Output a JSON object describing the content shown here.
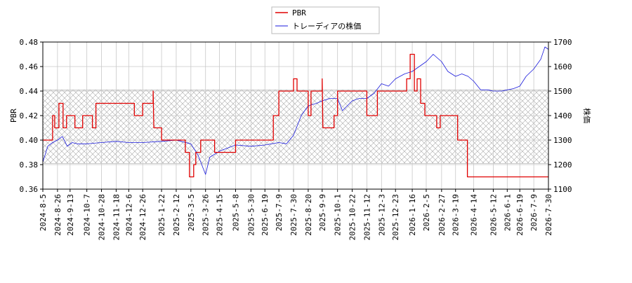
{
  "chart_data": {
    "type": "line",
    "legend": {
      "placement": "top-center",
      "entries": [
        {
          "name": "PBR",
          "color": "#e00000"
        },
        {
          "name": "トレーディアの株価",
          "color": "#1a1adc"
        }
      ]
    },
    "left_axis": {
      "label": "PBR",
      "ylim": [
        0.36,
        0.48
      ],
      "ticks": [
        "0.36",
        "0.38",
        "0.40",
        "0.42",
        "0.44",
        "0.46",
        "0.48"
      ]
    },
    "right_axis": {
      "label": "株価",
      "ylim": [
        1100,
        1700
      ],
      "ticks": [
        "1100",
        "1200",
        "1300",
        "1400",
        "1500",
        "1600",
        "1700"
      ]
    },
    "x_axis": {
      "range": [
        "2024-8-5",
        "2026-7-30"
      ],
      "ticks": [
        "2024-8-5",
        "2024-8-26",
        "2024-9-13",
        "2024-10-7",
        "2024-10-28",
        "2024-11-18",
        "2024-12-6",
        "2024-12-26",
        "2025-1-22",
        "2025-2-12",
        "2025-3-5",
        "2025-3-26",
        "2025-4-15",
        "2025-5-8",
        "2025-5-30",
        "2025-6-19",
        "2025-7-9",
        "2025-7-30",
        "2025-8-20",
        "2025-9-9",
        "2025-10-1",
        "2025-10-22",
        "2025-11-12",
        "2025-12-3",
        "2025-12-23",
        "2026-1-16",
        "2026-2-5",
        "2026-2-27",
        "2026-3-19",
        "2026-4-14",
        "2026-5-12",
        "2026-6-1",
        "2026-6-19",
        "2026-7-9",
        "2026-7-30"
      ]
    },
    "grid": true,
    "hatched_band": {
      "pbr_range": [
        0.381,
        0.441
      ]
    },
    "series": [
      {
        "name": "PBR",
        "axis": "left",
        "color": "#e00000",
        "points": [
          [
            "2024-8-5",
            0.4
          ],
          [
            "2024-8-19",
            0.4
          ],
          [
            "2024-8-19",
            0.42
          ],
          [
            "2024-8-22",
            0.42
          ],
          [
            "2024-8-22",
            0.41
          ],
          [
            "2024-8-28",
            0.41
          ],
          [
            "2024-8-28",
            0.43
          ],
          [
            "2024-9-3",
            0.43
          ],
          [
            "2024-9-3",
            0.41
          ],
          [
            "2024-9-8",
            0.41
          ],
          [
            "2024-9-8",
            0.42
          ],
          [
            "2024-9-20",
            0.42
          ],
          [
            "2024-9-20",
            0.41
          ],
          [
            "2024-10-1",
            0.41
          ],
          [
            "2024-10-1",
            0.42
          ],
          [
            "2024-10-15",
            0.42
          ],
          [
            "2024-10-15",
            0.41
          ],
          [
            "2024-10-20",
            0.41
          ],
          [
            "2024-10-20",
            0.43
          ],
          [
            "2024-12-14",
            0.43
          ],
          [
            "2024-12-14",
            0.42
          ],
          [
            "2024-12-26",
            0.42
          ],
          [
            "2024-12-26",
            0.43
          ],
          [
            "2025-1-10",
            0.43
          ],
          [
            "2025-1-10",
            0.44
          ],
          [
            "2025-1-11",
            0.41
          ],
          [
            "2025-1-22",
            0.41
          ],
          [
            "2025-1-22",
            0.4
          ],
          [
            "2025-2-25",
            0.4
          ],
          [
            "2025-2-25",
            0.39
          ],
          [
            "2025-3-3",
            0.39
          ],
          [
            "2025-3-3",
            0.37
          ],
          [
            "2025-3-9",
            0.37
          ],
          [
            "2025-3-9",
            0.38
          ],
          [
            "2025-3-12",
            0.38
          ],
          [
            "2025-3-12",
            0.39
          ],
          [
            "2025-3-19",
            0.39
          ],
          [
            "2025-3-19",
            0.4
          ],
          [
            "2025-4-8",
            0.4
          ],
          [
            "2025-4-8",
            0.39
          ],
          [
            "2025-5-8",
            0.39
          ],
          [
            "2025-5-8",
            0.4
          ],
          [
            "2025-7-1",
            0.4
          ],
          [
            "2025-7-1",
            0.42
          ],
          [
            "2025-7-9",
            0.42
          ],
          [
            "2025-7-9",
            0.44
          ],
          [
            "2025-7-30",
            0.44
          ],
          [
            "2025-7-30",
            0.45
          ],
          [
            "2025-8-4",
            0.45
          ],
          [
            "2025-8-4",
            0.44
          ],
          [
            "2025-8-20",
            0.44
          ],
          [
            "2025-8-20",
            0.42
          ],
          [
            "2025-8-24",
            0.42
          ],
          [
            "2025-8-24",
            0.44
          ],
          [
            "2025-9-9",
            0.44
          ],
          [
            "2025-9-9",
            0.45
          ],
          [
            "2025-9-10",
            0.41
          ],
          [
            "2025-9-26",
            0.41
          ],
          [
            "2025-9-26",
            0.42
          ],
          [
            "2025-10-1",
            0.42
          ],
          [
            "2025-10-1",
            0.44
          ],
          [
            "2025-11-12",
            0.44
          ],
          [
            "2025-11-12",
            0.42
          ],
          [
            "2025-11-27",
            0.42
          ],
          [
            "2025-11-27",
            0.44
          ],
          [
            "2026-1-8",
            0.44
          ],
          [
            "2026-1-8",
            0.45
          ],
          [
            "2026-1-13",
            0.45
          ],
          [
            "2026-1-13",
            0.47
          ],
          [
            "2026-1-19",
            0.47
          ],
          [
            "2026-1-19",
            0.44
          ],
          [
            "2026-1-23",
            0.44
          ],
          [
            "2026-1-23",
            0.45
          ],
          [
            "2026-1-28",
            0.45
          ],
          [
            "2026-1-28",
            0.43
          ],
          [
            "2026-2-3",
            0.43
          ],
          [
            "2026-2-3",
            0.42
          ],
          [
            "2026-2-20",
            0.42
          ],
          [
            "2026-2-20",
            0.41
          ],
          [
            "2026-2-25",
            0.41
          ],
          [
            "2026-2-25",
            0.42
          ],
          [
            "2026-3-22",
            0.42
          ],
          [
            "2026-3-22",
            0.4
          ],
          [
            "2026-4-5",
            0.4
          ],
          [
            "2026-4-5",
            0.37
          ],
          [
            "2026-7-30",
            0.37
          ]
        ]
      },
      {
        "name": "トレーディアの株価",
        "axis": "right",
        "color": "#1a1adc",
        "points": [
          [
            "2024-8-5",
            1210
          ],
          [
            "2024-8-12",
            1275
          ],
          [
            "2024-8-19",
            1290
          ],
          [
            "2024-8-26",
            1300
          ],
          [
            "2024-9-2",
            1315
          ],
          [
            "2024-9-9",
            1275
          ],
          [
            "2024-9-16",
            1290
          ],
          [
            "2024-9-23",
            1285
          ],
          [
            "2024-10-7",
            1285
          ],
          [
            "2024-10-28",
            1290
          ],
          [
            "2024-11-18",
            1295
          ],
          [
            "2024-12-6",
            1290
          ],
          [
            "2024-12-26",
            1290
          ],
          [
            "2025-1-22",
            1295
          ],
          [
            "2025-2-12",
            1300
          ],
          [
            "2025-3-5",
            1285
          ],
          [
            "2025-3-15",
            1240
          ],
          [
            "2025-3-26",
            1160
          ],
          [
            "2025-4-1",
            1230
          ],
          [
            "2025-4-15",
            1255
          ],
          [
            "2025-5-8",
            1280
          ],
          [
            "2025-5-30",
            1275
          ],
          [
            "2025-6-19",
            1280
          ],
          [
            "2025-7-9",
            1290
          ],
          [
            "2025-7-20",
            1285
          ],
          [
            "2025-7-30",
            1320
          ],
          [
            "2025-8-10",
            1400
          ],
          [
            "2025-8-20",
            1440
          ],
          [
            "2025-9-1",
            1450
          ],
          [
            "2025-9-9",
            1460
          ],
          [
            "2025-9-20",
            1470
          ],
          [
            "2025-10-1",
            1470
          ],
          [
            "2025-10-8",
            1420
          ],
          [
            "2025-10-15",
            1440
          ],
          [
            "2025-10-22",
            1460
          ],
          [
            "2025-11-1",
            1470
          ],
          [
            "2025-11-12",
            1470
          ],
          [
            "2025-11-22",
            1490
          ],
          [
            "2025-12-3",
            1530
          ],
          [
            "2025-12-13",
            1520
          ],
          [
            "2025-12-23",
            1550
          ],
          [
            "2026-1-5",
            1570
          ],
          [
            "2026-1-16",
            1580
          ],
          [
            "2026-1-26",
            1600
          ],
          [
            "2026-2-5",
            1620
          ],
          [
            "2026-2-15",
            1650
          ],
          [
            "2026-2-27",
            1620
          ],
          [
            "2026-3-8",
            1580
          ],
          [
            "2026-3-19",
            1560
          ],
          [
            "2026-3-28",
            1570
          ],
          [
            "2026-4-6",
            1560
          ],
          [
            "2026-4-14",
            1540
          ],
          [
            "2026-4-24",
            1505
          ],
          [
            "2026-5-4",
            1505
          ],
          [
            "2026-5-12",
            1500
          ],
          [
            "2026-5-24",
            1500
          ],
          [
            "2026-6-1",
            1505
          ],
          [
            "2026-6-10",
            1510
          ],
          [
            "2026-6-19",
            1520
          ],
          [
            "2026-6-28",
            1560
          ],
          [
            "2026-7-9",
            1590
          ],
          [
            "2026-7-19",
            1630
          ],
          [
            "2026-7-25",
            1680
          ],
          [
            "2026-7-30",
            1670
          ]
        ]
      }
    ]
  }
}
